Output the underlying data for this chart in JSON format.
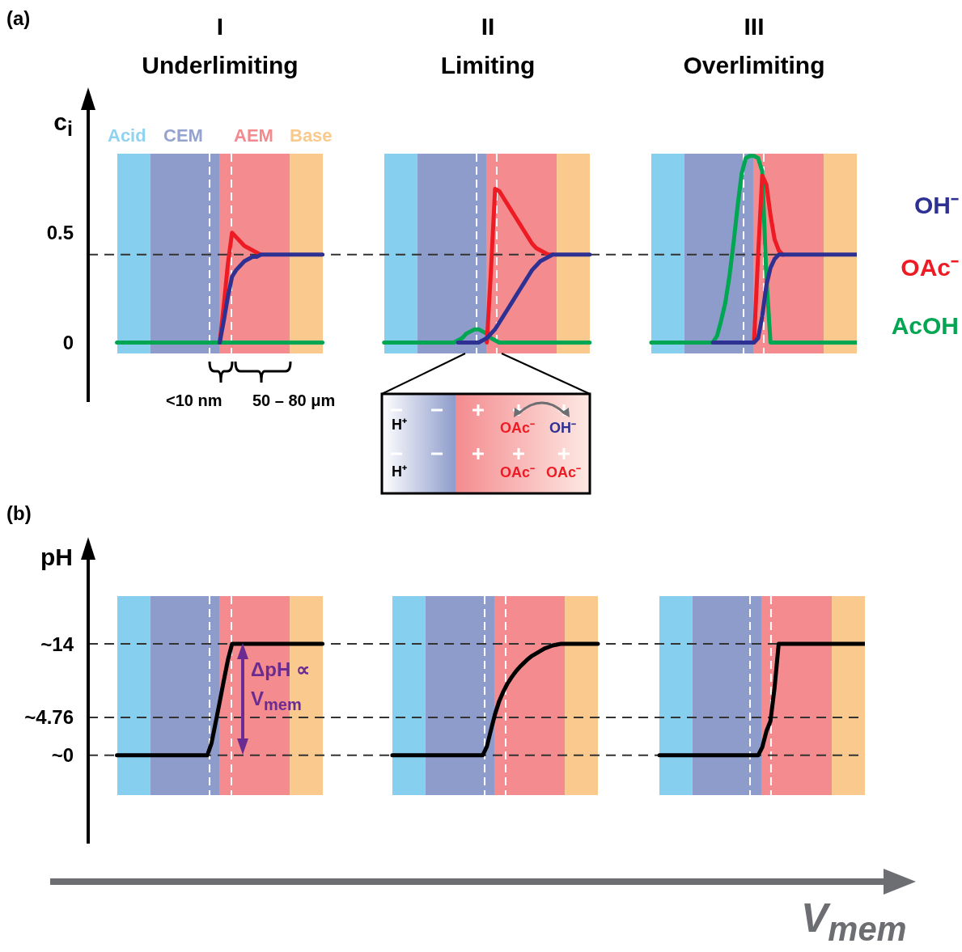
{
  "chart_data": [
    {
      "type": "line",
      "ylabel": "c$_{i}$",
      "annotations": [
        "(a)",
        "I",
        "Underlimiting",
        "II",
        "Limiting",
        "III",
        "Overlimiting",
        "<10 nm",
        "50 – 80 μm",
        "Acid",
        "CEM",
        "AEM",
        "Base",
        "H⁺",
        "H⁺",
        "OAc⁻",
        "OH⁻",
        "OAc⁻",
        "OAc⁻"
      ],
      "ylim": [
        -0.05,
        0.86
      ],
      "yticks": [
        0,
        0.5
      ],
      "tick_labels": "y",
      "categories": [
        null,
        null,
        null,
        null,
        null,
        null,
        null,
        null,
        null,
        null,
        null,
        null,
        null,
        null,
        null,
        null,
        null,
        null,
        null,
        null,
        null,
        null,
        null,
        null,
        null,
        null,
        null,
        null,
        null,
        null,
        null,
        null,
        null,
        null,
        null,
        null,
        null,
        null,
        null,
        null,
        null,
        null,
        null,
        null,
        null,
        null,
        null,
        null,
        null,
        null,
        null,
        null,
        null,
        null,
        null,
        null,
        null,
        null,
        null,
        null,
        null,
        null,
        null,
        null,
        null,
        null,
        null,
        null,
        null,
        null,
        null,
        null,
        null,
        null,
        null,
        null,
        null,
        null,
        null,
        null,
        null,
        null,
        null,
        null,
        null,
        null,
        null,
        null,
        null,
        null,
        null,
        null,
        null,
        null,
        null,
        null,
        null,
        null,
        null,
        null,
        null,
        null,
        null,
        null,
        null,
        null,
        null,
        null,
        null,
        null,
        null,
        null,
        null,
        null,
        null,
        null,
        null,
        null,
        null,
        null,
        null,
        null,
        null,
        null,
        null,
        null,
        null,
        null,
        null,
        null,
        null,
        null,
        null,
        null,
        null,
        null,
        null,
        null,
        null,
        null,
        null,
        null,
        null,
        null,
        null,
        null,
        null,
        null,
        null,
        null,
        null,
        null,
        null,
        null,
        null,
        null,
        null,
        null,
        null,
        null,
        null,
        null,
        null,
        null,
        null,
        null,
        null,
        null,
        null,
        null,
        null,
        null,
        null,
        null,
        null,
        null,
        null,
        null,
        null,
        null,
        null,
        null,
        null,
        null,
        null,
        null,
        null,
        null
      ],
      "ref_lines": [
        {
          "axis": "y",
          "value": 0.4,
          "color": "#333333",
          "line_style": "dashed"
        }
      ],
      "series": [
        {
          "name": "OH⁻",
          "color": "#2e3192",
          "values": [
            null,
            null,
            null,
            null,
            null,
            null,
            null,
            null,
            null,
            null,
            null,
            null,
            null,
            null,
            null,
            null,
            null,
            null,
            null,
            null,
            null,
            null,
            null,
            null,
            null,
            null,
            null,
            null,
            null,
            null,
            null,
            null,
            0,
            0.1,
            0.21,
            0.3,
            0.33,
            0.35,
            0.37,
            0.38,
            0.39,
            0.39,
            0.4,
            0.4,
            0.4,
            0.4,
            0.4,
            0.4,
            0.4,
            0.4,
            0.4,
            0.4,
            0.4,
            0.4,
            0.4,
            0.4,
            0.4,
            0.4,
            null,
            null,
            null,
            null,
            null,
            null,
            null,
            null,
            null,
            null,
            null,
            null,
            null,
            null,
            null,
            null,
            null,
            null,
            null,
            null,
            null,
            null,
            null,
            null,
            null,
            null,
            null,
            null,
            null,
            null,
            null,
            null,
            0,
            0,
            0,
            0,
            0,
            0,
            0.01,
            0.02,
            0.04,
            0.06,
            0.09,
            0.12,
            0.15,
            0.18,
            0.21,
            0.24,
            0.27,
            0.3,
            0.33,
            0.35,
            0.37,
            0.38,
            0.39,
            0.4,
            0.4,
            0.4,
            0.4,
            0.4,
            0.4,
            0.4,
            0.4,
            0.4,
            0.4,
            null,
            null,
            null,
            null,
            null,
            null,
            null,
            null,
            null,
            null,
            null,
            null,
            null,
            null,
            null,
            null,
            null,
            null,
            null,
            null,
            null,
            null,
            null,
            null,
            null,
            null,
            null,
            null,
            null,
            0,
            0,
            0,
            0,
            0,
            0,
            0,
            0,
            0,
            0,
            0,
            0.02,
            0.12,
            0.26,
            0.34,
            0.38,
            0.4,
            0.4,
            0.4,
            0.4,
            0.4,
            0.4,
            0.4,
            0.4,
            0.4,
            0.4,
            0.4,
            0.4,
            0.4,
            0.4,
            0.4,
            0.4,
            0.4,
            0.4,
            0.4,
            0.4
          ]
        },
        {
          "name": "OAc⁻",
          "color": "#ed1c24",
          "values": [
            null,
            null,
            null,
            null,
            null,
            null,
            null,
            null,
            null,
            null,
            null,
            null,
            null,
            null,
            null,
            null,
            null,
            null,
            null,
            null,
            null,
            null,
            null,
            null,
            null,
            null,
            null,
            null,
            null,
            null,
            null,
            null,
            0,
            0.17,
            0.36,
            0.5,
            0.48,
            0.46,
            0.44,
            0.43,
            0.42,
            0.41,
            0.4,
            null,
            null,
            null,
            null,
            null,
            null,
            null,
            null,
            null,
            null,
            null,
            null,
            null,
            null,
            null,
            null,
            null,
            null,
            null,
            null,
            null,
            null,
            null,
            null,
            null,
            null,
            null,
            null,
            null,
            null,
            null,
            null,
            null,
            null,
            null,
            null,
            null,
            null,
            null,
            null,
            null,
            null,
            null,
            null,
            null,
            null,
            null,
            null,
            null,
            null,
            null,
            null,
            null,
            null,
            0,
            0.33,
            0.7,
            0.69,
            0.66,
            0.63,
            0.6,
            0.57,
            0.54,
            0.51,
            0.48,
            0.45,
            0.43,
            0.42,
            0.41,
            0.4,
            0.4,
            null,
            null,
            null,
            null,
            null,
            null,
            null,
            null,
            null,
            null,
            null,
            null,
            null,
            null,
            null,
            null,
            null,
            null,
            null,
            null,
            null,
            null,
            null,
            null,
            null,
            null,
            null,
            null,
            null,
            null,
            null,
            null,
            null,
            null,
            null,
            null,
            null,
            null,
            null,
            null,
            null,
            null,
            null,
            null,
            null,
            null,
            null,
            null,
            0,
            0.4,
            0.76,
            0.72,
            0.58,
            0.47,
            0.42,
            0.4,
            null,
            null,
            null,
            null,
            null,
            null,
            null,
            null,
            null,
            null,
            null,
            null,
            null,
            null,
            null,
            null,
            null,
            null
          ]
        },
        {
          "name": "AcOH",
          "color": "#00a651",
          "values": [
            null,
            null,
            null,
            null,
            null,
            null,
            null,
            0,
            0,
            0,
            0,
            0,
            0,
            0,
            0,
            0,
            0,
            0,
            0,
            0,
            0,
            0,
            0,
            0,
            0,
            0,
            0,
            0,
            0,
            0,
            0,
            0,
            0,
            0,
            0,
            0,
            0,
            0,
            0,
            0,
            0,
            0,
            0,
            0,
            0,
            0,
            0,
            0,
            0,
            0,
            0,
            0,
            0,
            0,
            0,
            0,
            0,
            0,
            null,
            null,
            null,
            null,
            null,
            null,
            null,
            null,
            null,
            null,
            null,
            null,
            null,
            null,
            0,
            0,
            0,
            0,
            0,
            0,
            0,
            0,
            0,
            0,
            0,
            0,
            0,
            0,
            0,
            0,
            0,
            0,
            0.01,
            0.02,
            0.04,
            0.05,
            0.06,
            0.06,
            0.05,
            0.04,
            0.02,
            0.01,
            0,
            0,
            0,
            0,
            0,
            0,
            0,
            0,
            0,
            0,
            0,
            0,
            0,
            0,
            0,
            0,
            0,
            0,
            0,
            0,
            0,
            0,
            0,
            null,
            null,
            null,
            null,
            null,
            null,
            null,
            null,
            null,
            null,
            null,
            null,
            null,
            null,
            0,
            0,
            0,
            0,
            0,
            0,
            0,
            0,
            0,
            0,
            0,
            0,
            0,
            0,
            0,
            0,
            0.03,
            0.1,
            0.18,
            0.3,
            0.45,
            0.62,
            0.77,
            0.84,
            0.85,
            0.85,
            0.84,
            0.78,
            0.3,
            0,
            0,
            0,
            0,
            0,
            0,
            0,
            0,
            0,
            0,
            0,
            0,
            0,
            0,
            0,
            0,
            0,
            0,
            0,
            0,
            0,
            0
          ]
        }
      ]
    },
    {
      "type": "line",
      "ylabel": "pH",
      "annotations": [
        "(b)",
        "ΔpH ∝ V$_{mem}$",
        "V$_{mem}$"
      ],
      "ylim": [
        -5,
        20
      ],
      "yticks": [
        {
          "value": 0,
          "label": "~0"
        },
        {
          "value": 4.76,
          "label": "~4.76"
        },
        {
          "value": 14,
          "label": "~14"
        }
      ],
      "tick_labels": "y",
      "categories": [
        null,
        null,
        null,
        null,
        null,
        null,
        null,
        null,
        null,
        null,
        null,
        null,
        null,
        null,
        null,
        null,
        null,
        null,
        null,
        null,
        null,
        null,
        null,
        null,
        null,
        null,
        null,
        null,
        null,
        null,
        null,
        null,
        null,
        null,
        null,
        null,
        null,
        null,
        null,
        null,
        null,
        null,
        null,
        null,
        null,
        null,
        null,
        null,
        null,
        null,
        null,
        null,
        null,
        null,
        null,
        null,
        null,
        null,
        null,
        null,
        null,
        null,
        null,
        null,
        null,
        null,
        null,
        null,
        null,
        null,
        null,
        null,
        null,
        null,
        null,
        null,
        null,
        null,
        null,
        null,
        null,
        null,
        null,
        null,
        null,
        null,
        null,
        null,
        null,
        null,
        null,
        null,
        null,
        null,
        null,
        null,
        null,
        null,
        null,
        null,
        null,
        null,
        null,
        null,
        null,
        null,
        null,
        null,
        null,
        null,
        null,
        null,
        null,
        null,
        null,
        null,
        null,
        null,
        null,
        null,
        null,
        null,
        null,
        null,
        null,
        null,
        null,
        null,
        null,
        null,
        null,
        null,
        null,
        null,
        null,
        null,
        null,
        null,
        null,
        null,
        null,
        null,
        null,
        null,
        null,
        null,
        null,
        null,
        null,
        null,
        null,
        null,
        null,
        null,
        null,
        null,
        null,
        null,
        null,
        null,
        null,
        null,
        null,
        null,
        null,
        null,
        null,
        null,
        null,
        null,
        null,
        null,
        null,
        null,
        null,
        null,
        null,
        null,
        null,
        null,
        null,
        null,
        null,
        null,
        null,
        null,
        null,
        null,
        null,
        null
      ],
      "ref_lines": [
        {
          "axis": "y",
          "value": 0,
          "color": "#333333",
          "line_style": "dashed"
        },
        {
          "axis": "y",
          "value": 4.76,
          "color": "#333333",
          "line_style": "dashed"
        },
        {
          "axis": "y",
          "value": 14,
          "color": "#333333",
          "line_style": "dashed"
        }
      ],
      "series": [
        {
          "color": "#000000",
          "values": [
            null,
            null,
            null,
            null,
            null,
            null,
            null,
            0,
            0,
            0,
            0,
            0,
            0,
            0,
            0,
            0,
            0,
            0,
            0,
            0,
            0,
            0,
            0,
            0,
            0,
            0,
            0,
            0,
            0,
            0,
            1.5,
            4.1,
            6.7,
            9.4,
            12,
            14,
            14,
            14,
            14,
            14,
            14,
            14,
            14,
            14,
            14,
            14,
            14,
            14,
            14,
            14,
            14,
            14,
            14,
            14,
            14,
            14,
            14,
            14,
            null,
            null,
            null,
            null,
            null,
            null,
            null,
            null,
            null,
            null,
            null,
            null,
            null,
            null,
            null,
            null,
            0,
            0,
            0,
            0,
            0,
            0,
            0,
            0,
            0,
            0,
            0,
            0,
            0,
            0,
            0,
            0,
            0,
            0,
            0,
            0,
            0,
            0,
            0,
            1.1,
            3.2,
            5.2,
            6.8,
            8,
            9,
            9.8,
            10.5,
            11.1,
            11.6,
            12.1,
            12.5,
            12.8,
            13.1,
            13.4,
            13.6,
            13.8,
            13.9,
            14,
            14,
            14,
            14,
            14,
            14,
            14,
            14,
            14,
            14,
            null,
            null,
            null,
            null,
            null,
            null,
            null,
            null,
            null,
            null,
            null,
            null,
            null,
            null,
            0,
            0,
            0,
            0,
            0,
            0,
            0,
            0,
            0,
            0,
            0,
            0,
            0,
            0,
            0,
            0,
            0,
            0,
            0,
            0,
            0,
            0,
            0,
            0,
            0,
            1,
            3,
            4.3,
            8.5,
            14,
            14,
            14,
            14,
            14,
            14,
            14,
            14,
            14,
            14,
            14,
            14,
            14,
            14,
            14,
            14,
            14,
            14,
            14,
            14,
            14,
            14
          ]
        }
      ]
    }
  ]
}
